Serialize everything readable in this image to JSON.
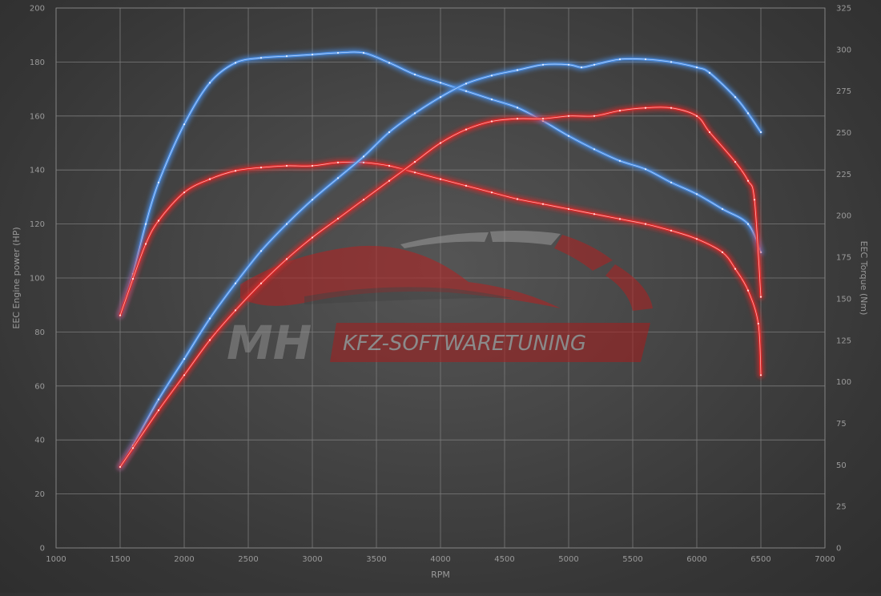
{
  "chart_data": {
    "type": "line",
    "xlabel": "RPM",
    "ylabel_left": "EEC Engine power (HP)",
    "ylabel_right": "EEC Torque (Nm)",
    "xlim": [
      1000,
      7000
    ],
    "ylim_left": [
      0,
      200
    ],
    "ylim_right": [
      0,
      325
    ],
    "x_ticks": [
      "1000",
      "1500",
      "2000",
      "2500",
      "3000",
      "3500",
      "4000",
      "4500",
      "5000",
      "5500",
      "6000",
      "6500",
      "7000"
    ],
    "y_ticks_left": [
      "0",
      "20",
      "40",
      "60",
      "80",
      "100",
      "120",
      "140",
      "160",
      "180",
      "200"
    ],
    "y_ticks_right": [
      "0",
      "25",
      "50",
      "75",
      "100",
      "125",
      "150",
      "175",
      "200",
      "225",
      "250",
      "275",
      "300",
      "325"
    ],
    "grid": true,
    "series": [
      {
        "axis": "right",
        "color": "#4a8fe6",
        "points": [
          [
            1500,
            140
          ],
          [
            1600,
            165
          ],
          [
            1700,
            195
          ],
          [
            1800,
            220
          ],
          [
            2000,
            255
          ],
          [
            2200,
            280
          ],
          [
            2400,
            292
          ],
          [
            2600,
            295
          ],
          [
            2800,
            296
          ],
          [
            3000,
            297
          ],
          [
            3200,
            298
          ],
          [
            3400,
            298
          ],
          [
            3600,
            292
          ],
          [
            3800,
            285
          ],
          [
            4000,
            280
          ],
          [
            4200,
            275
          ],
          [
            4400,
            270
          ],
          [
            4600,
            265
          ],
          [
            4800,
            257
          ],
          [
            5000,
            248
          ],
          [
            5200,
            240
          ],
          [
            5400,
            233
          ],
          [
            5600,
            228
          ],
          [
            5800,
            220
          ],
          [
            6000,
            213
          ],
          [
            6200,
            204
          ],
          [
            6400,
            195
          ],
          [
            6500,
            178
          ]
        ]
      },
      {
        "axis": "right",
        "color": "#e02828",
        "points": [
          [
            1500,
            140
          ],
          [
            1600,
            162
          ],
          [
            1700,
            183
          ],
          [
            1800,
            197
          ],
          [
            2000,
            214
          ],
          [
            2200,
            222
          ],
          [
            2400,
            227
          ],
          [
            2600,
            229
          ],
          [
            2800,
            230
          ],
          [
            3000,
            230
          ],
          [
            3200,
            232
          ],
          [
            3400,
            232
          ],
          [
            3600,
            230
          ],
          [
            3800,
            226
          ],
          [
            4000,
            222
          ],
          [
            4200,
            218
          ],
          [
            4400,
            214
          ],
          [
            4600,
            210
          ],
          [
            4800,
            207
          ],
          [
            5000,
            204
          ],
          [
            5200,
            201
          ],
          [
            5400,
            198
          ],
          [
            5600,
            195
          ],
          [
            5800,
            191
          ],
          [
            6000,
            186
          ],
          [
            6200,
            178
          ],
          [
            6300,
            168
          ],
          [
            6400,
            155
          ],
          [
            6480,
            135
          ],
          [
            6500,
            104
          ]
        ]
      },
      {
        "axis": "left",
        "color": "#4a8fe6",
        "points": [
          [
            1500,
            30
          ],
          [
            1600,
            38
          ],
          [
            1800,
            55
          ],
          [
            2000,
            70
          ],
          [
            2200,
            85
          ],
          [
            2400,
            98
          ],
          [
            2600,
            110
          ],
          [
            2800,
            120
          ],
          [
            3000,
            129
          ],
          [
            3200,
            137
          ],
          [
            3400,
            145
          ],
          [
            3600,
            154
          ],
          [
            3800,
            161
          ],
          [
            4000,
            167
          ],
          [
            4200,
            172
          ],
          [
            4400,
            175
          ],
          [
            4600,
            177
          ],
          [
            4800,
            179
          ],
          [
            5000,
            179
          ],
          [
            5100,
            178
          ],
          [
            5200,
            179
          ],
          [
            5400,
            181
          ],
          [
            5600,
            181
          ],
          [
            5800,
            180
          ],
          [
            6000,
            178
          ],
          [
            6100,
            176
          ],
          [
            6300,
            167
          ],
          [
            6400,
            161
          ],
          [
            6500,
            154
          ]
        ]
      },
      {
        "axis": "left",
        "color": "#e02828",
        "points": [
          [
            1500,
            30
          ],
          [
            1600,
            37
          ],
          [
            1800,
            51
          ],
          [
            2000,
            64
          ],
          [
            2200,
            77
          ],
          [
            2400,
            88
          ],
          [
            2600,
            98
          ],
          [
            2800,
            107
          ],
          [
            3000,
            115
          ],
          [
            3200,
            122
          ],
          [
            3400,
            129
          ],
          [
            3600,
            136
          ],
          [
            3800,
            143
          ],
          [
            4000,
            150
          ],
          [
            4200,
            155
          ],
          [
            4400,
            158
          ],
          [
            4600,
            159
          ],
          [
            4800,
            159
          ],
          [
            5000,
            160
          ],
          [
            5200,
            160
          ],
          [
            5400,
            162
          ],
          [
            5600,
            163
          ],
          [
            5800,
            163
          ],
          [
            6000,
            160
          ],
          [
            6100,
            154
          ],
          [
            6300,
            143
          ],
          [
            6400,
            136
          ],
          [
            6450,
            129
          ],
          [
            6500,
            93
          ]
        ]
      }
    ]
  },
  "watermark": {
    "logo_text": "MH",
    "tagline": "KFZ-SOFTWARETUNING"
  }
}
